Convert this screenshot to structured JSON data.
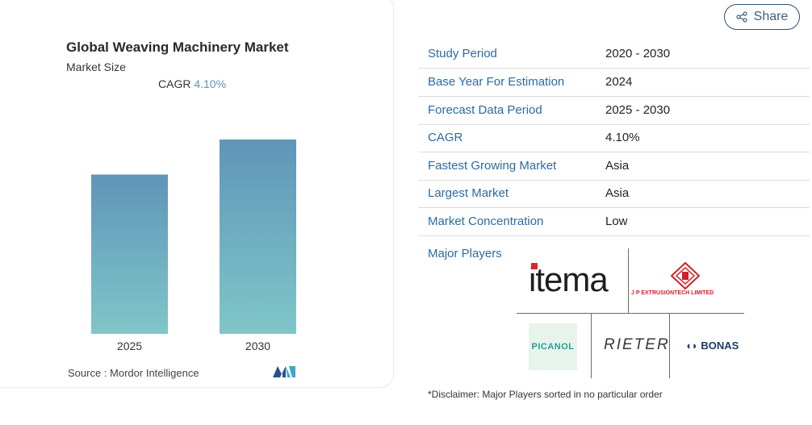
{
  "chart_data": {
    "type": "bar",
    "title": "Global Weaving Machinery Market",
    "subtitle": "Market Size",
    "cagr_label": "CAGR",
    "cagr_value": "4.10%",
    "categories": [
      "2025",
      "2030"
    ],
    "values": [
      1.0,
      1.22
    ],
    "ylim": [
      0,
      1.22
    ],
    "grid": false,
    "bar_gradient": [
      "#5f95b8",
      "#80c6c9"
    ],
    "source_label": "Source :",
    "source_value": "Mordor Intelligence"
  },
  "share": {
    "label": "Share",
    "icon": "share-icon"
  },
  "table": {
    "rows": [
      {
        "key": "Study Period",
        "value": "2020 - 2030"
      },
      {
        "key": "Base Year For Estimation",
        "value": "2024"
      },
      {
        "key": "Forecast Data Period",
        "value": "2025 - 2030"
      },
      {
        "key": "CAGR",
        "value": "4.10%"
      },
      {
        "key": "Fastest Growing Market",
        "value": "Asia"
      },
      {
        "key": "Largest Market",
        "value": "Asia"
      },
      {
        "key": "Market Concentration",
        "value": "Low"
      }
    ],
    "major_players_label": "Major Players"
  },
  "logos": {
    "itema": "itema",
    "jp": "J P EXTRUSIONTECH LIMITED",
    "picanol": "PICANOL",
    "rieter": "RIETER",
    "bonas": "BONAS"
  },
  "disclaimer": "*Disclaimer: Major Players sorted in no particular order"
}
